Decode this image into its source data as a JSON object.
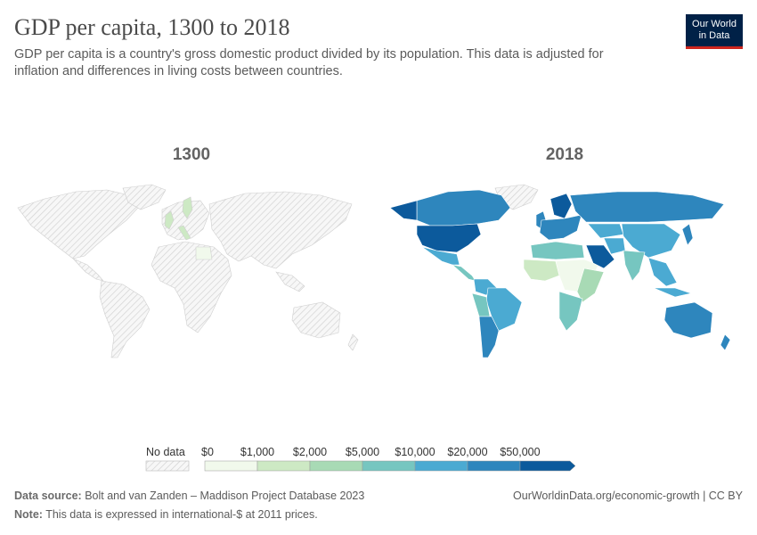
{
  "header": {
    "title": "GDP per capita, 1300 to 2018",
    "subtitle": "GDP per capita is a country's gross domestic product divided by its population. This data is adjusted for inflation and differences in living costs between countries."
  },
  "logo": {
    "line1": "Our World",
    "line2": "in Data",
    "bg_color": "#002147",
    "accent_color": "#ce261e"
  },
  "maps": [
    {
      "label": "1300"
    },
    {
      "label": "2018"
    }
  ],
  "legend": {
    "no_data_label": "No data",
    "bins": [
      {
        "label": "$0",
        "color": "#f1f9ec"
      },
      {
        "label": "$1,000",
        "color": "#cde9c4"
      },
      {
        "label": "$2,000",
        "color": "#a8dab5"
      },
      {
        "label": "$5,000",
        "color": "#76c6c0"
      },
      {
        "label": "$10,000",
        "color": "#4baad2"
      },
      {
        "label": "$20,000",
        "color": "#2e86bd"
      },
      {
        "label": "$50,000",
        "color": "#0c5a9c"
      }
    ]
  },
  "footer": {
    "source_label": "Data source:",
    "source_text": "Bolt and van Zanden – Maddison Project Database 2023",
    "note_label": "Note:",
    "note_text": "This data is expressed in international-$ at 2011 prices.",
    "url_text": "OurWorldinData.org/economic-growth | CC BY"
  }
}
